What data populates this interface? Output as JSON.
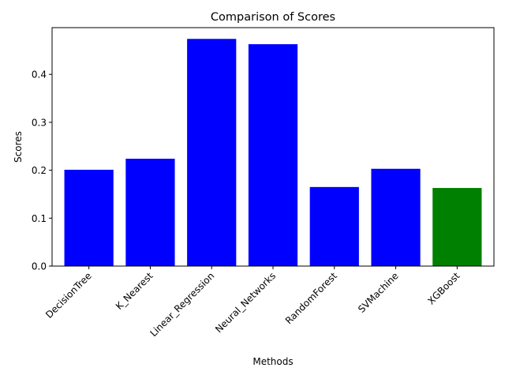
{
  "chart_data": {
    "type": "bar",
    "title": "Comparison of Scores",
    "xlabel": "Methods",
    "ylabel": "Scores",
    "categories": [
      "DecisionTree",
      "K_Nearest",
      "Linear_Regression",
      "Neural_Networks",
      "RandomForest",
      "SVMachine",
      "XGBoost"
    ],
    "values": [
      0.201,
      0.224,
      0.474,
      0.463,
      0.165,
      0.203,
      0.163
    ],
    "bar_colors": [
      "#0000ff",
      "#0000ff",
      "#0000ff",
      "#0000ff",
      "#0000ff",
      "#0000ff",
      "#008000"
    ],
    "ylim": [
      0,
      0.4975
    ],
    "yticks": [
      "0.0",
      "0.1",
      "0.2",
      "0.3",
      "0.4"
    ],
    "grid": false,
    "legend": "none"
  }
}
